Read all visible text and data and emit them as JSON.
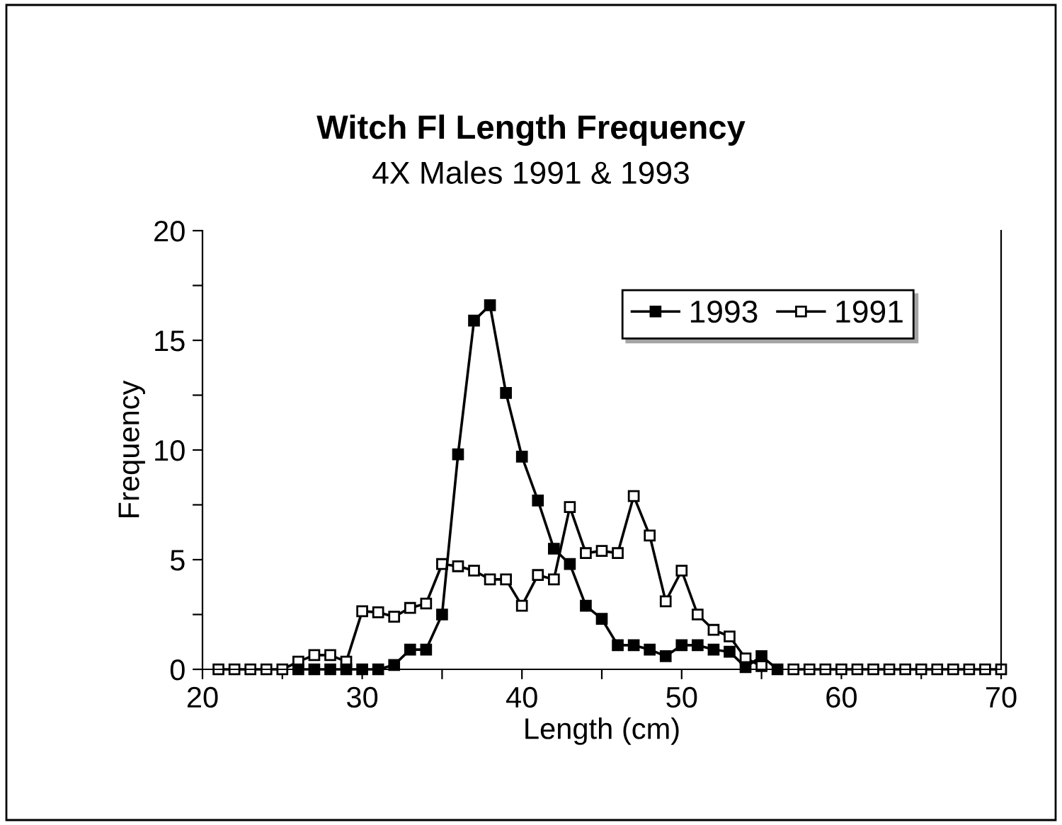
{
  "chart_data": {
    "type": "line",
    "title": "Witch Fl Length Frequency",
    "subtitle": "4X Males 1991 & 1993",
    "xlabel": "Length (cm)",
    "ylabel": "Frequency",
    "xlim": [
      20,
      70
    ],
    "xticks": [
      20,
      {
        "value": 25,
        "label": null
      },
      30,
      {
        "value": 35,
        "label": null
      },
      40,
      {
        "value": 45,
        "label": null
      },
      50,
      {
        "value": 55,
        "label": null
      },
      60,
      {
        "value": 65,
        "label": null
      },
      70
    ],
    "ylim": [
      0,
      20
    ],
    "yticks": [
      0,
      {
        "value": 2.5,
        "label": null
      },
      5,
      {
        "value": 7.5,
        "label": null
      },
      10,
      {
        "value": 12.5,
        "label": null
      },
      15,
      {
        "value": 17.5,
        "label": null
      },
      20
    ],
    "grid": false,
    "legend": "top right",
    "marker": "square",
    "line_style": "solid",
    "series": [
      {
        "name": "1993",
        "color": "#000000",
        "x": [
          26,
          27,
          28,
          29,
          30,
          31,
          32,
          33,
          34,
          35,
          36,
          37,
          38,
          39,
          40,
          41,
          42,
          43,
          44,
          45,
          46,
          47,
          48,
          49,
          50,
          51,
          52,
          53,
          54,
          55,
          56
        ],
        "values": [
          0,
          0,
          0,
          0,
          0,
          0,
          0.2,
          0.9,
          0.9,
          2.5,
          9.8,
          15.9,
          16.6,
          12.6,
          9.7,
          7.7,
          5.5,
          4.8,
          2.9,
          2.3,
          1.1,
          1.1,
          0.9,
          0.6,
          1.1,
          1.1,
          0.9,
          0.8,
          0.1,
          0.6,
          0
        ]
      },
      {
        "name": "1991",
        "color": "#000000",
        "x": [
          21,
          22,
          23,
          24,
          25,
          26,
          27,
          28,
          29,
          30,
          31,
          32,
          33,
          34,
          35,
          36,
          37,
          38,
          39,
          40,
          41,
          42,
          43,
          44,
          45,
          46,
          47,
          48,
          49,
          50,
          51,
          52,
          53,
          54,
          55,
          56,
          57,
          58,
          59,
          60,
          61,
          62,
          63,
          64,
          65,
          66,
          67,
          68,
          69,
          70
        ],
        "values": [
          0,
          0,
          0,
          0,
          0,
          0.35,
          0.65,
          0.65,
          0.35,
          2.65,
          2.6,
          2.4,
          2.8,
          3.0,
          4.8,
          4.7,
          4.5,
          4.1,
          4.1,
          2.9,
          4.3,
          4.1,
          7.4,
          5.3,
          5.4,
          5.3,
          7.9,
          6.1,
          3.1,
          4.5,
          2.5,
          1.8,
          1.5,
          0.5,
          0.15,
          null,
          0,
          0,
          0,
          0,
          0,
          0,
          0,
          0,
          0,
          0,
          0,
          0,
          0,
          0
        ]
      }
    ]
  }
}
